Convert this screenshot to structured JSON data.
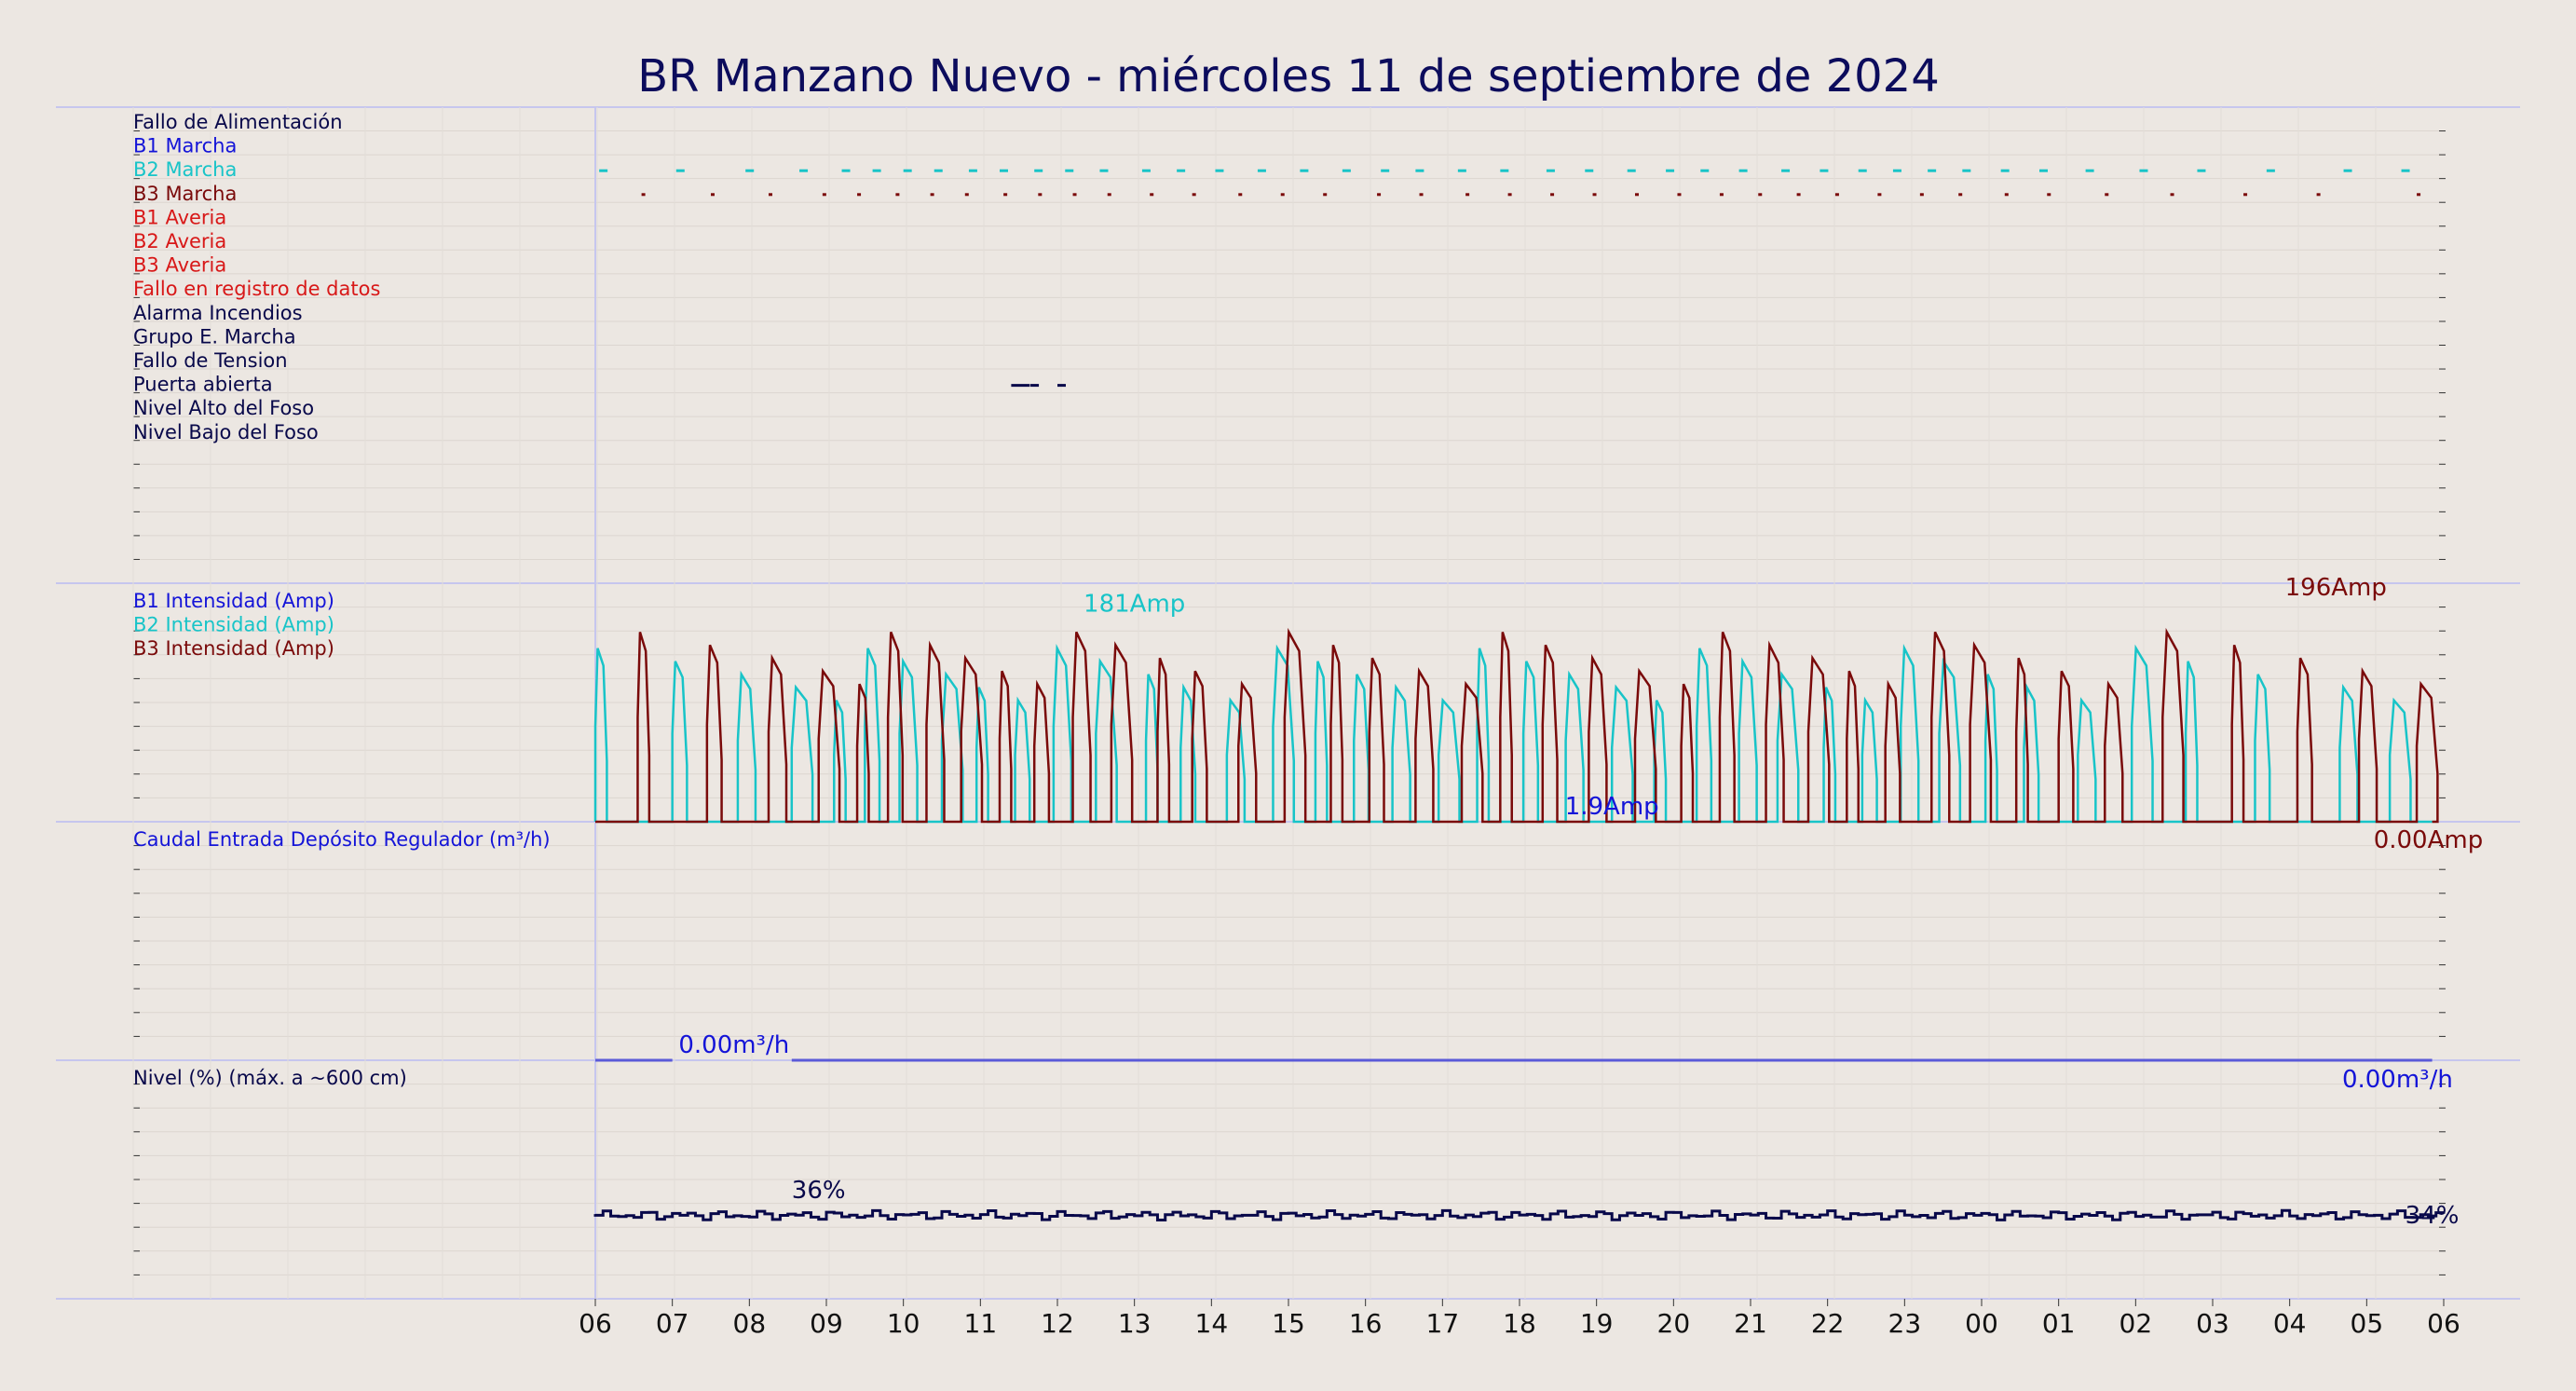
{
  "title": "BR Manzano Nuevo   -   miércoles 11 de septiembre de 2024",
  "colors": {
    "background": "#ece7e2",
    "title": "#0c0c5c",
    "navy": "#08084a",
    "blue": "#1414d8",
    "cyan": "#18c4c8",
    "maroon": "#7a0a0a",
    "red": "#d81818",
    "flow_line": "#5a5ad8",
    "separator": "#c6c6ee"
  },
  "x_ticks": [
    "06",
    "07",
    "08",
    "09",
    "10",
    "11",
    "12",
    "13",
    "14",
    "15",
    "16",
    "17",
    "18",
    "19",
    "20",
    "21",
    "22",
    "23",
    "00",
    "01",
    "02",
    "03",
    "04",
    "05",
    "06"
  ],
  "chart_data": [
    {
      "type": "line",
      "panel": "estados",
      "series": [
        {
          "name": "Fallo de Alimentación",
          "color": "#08084a",
          "on_at_hour": []
        },
        {
          "name": "B1 Marcha",
          "color": "#1414d8",
          "on_at_hour": []
        },
        {
          "name": "B2 Marcha",
          "color": "#18c4c8",
          "on_at_hour": [
            0.05,
            1.05,
            1.95,
            2.65,
            3.2,
            3.6,
            4.0,
            4.4,
            4.85,
            5.25,
            5.7,
            6.1,
            6.55,
            7.1,
            7.55,
            8.05,
            8.6,
            9.15,
            9.7,
            10.2,
            10.65,
            11.2,
            11.75,
            12.35,
            12.85,
            13.4,
            13.9,
            14.35,
            14.85,
            15.4,
            15.9,
            16.4,
            16.85,
            17.3,
            17.75,
            18.25,
            18.75,
            19.35,
            20.05,
            20.8,
            21.7,
            22.7,
            23.45
          ]
        },
        {
          "name": "B3 Marcha",
          "color": "#7a0a0a",
          "on_at_hour": [
            0.6,
            1.5,
            2.25,
            2.95,
            3.4,
            3.9,
            4.35,
            4.8,
            5.3,
            5.75,
            6.2,
            6.65,
            7.2,
            7.75,
            8.35,
            8.9,
            9.45,
            10.15,
            10.7,
            11.3,
            11.85,
            12.4,
            12.95,
            13.5,
            14.05,
            14.6,
            15.1,
            15.6,
            16.1,
            16.65,
            17.2,
            17.7,
            18.3,
            18.85,
            19.6,
            20.45,
            21.4,
            22.35,
            23.65
          ]
        },
        {
          "name": "B1 Averia",
          "color": "#d81818",
          "on_at_hour": []
        },
        {
          "name": "B2 Averia",
          "color": "#d81818",
          "on_at_hour": []
        },
        {
          "name": "B3 Averia",
          "color": "#d81818",
          "on_at_hour": []
        },
        {
          "name": "Fallo en registro de datos",
          "color": "#d81818",
          "on_at_hour": []
        },
        {
          "name": "Alarma Incendios",
          "color": "#08084a",
          "on_at_hour": []
        },
        {
          "name": "Grupo E. Marcha",
          "color": "#08084a",
          "on_at_hour": []
        },
        {
          "name": "Fallo de Tension",
          "color": "#08084a",
          "on_at_hour": []
        },
        {
          "name": "Puerta abierta",
          "color": "#08084a",
          "on_at_hour": [
            5.4,
            5.65,
            6.0
          ]
        },
        {
          "name": "Nivel Alto del Foso",
          "color": "#08084a",
          "on_at_hour": []
        },
        {
          "name": "Nivel Bajo del Foso",
          "color": "#08084a",
          "on_at_hour": []
        }
      ]
    },
    {
      "type": "line",
      "panel": "intensidad",
      "ylim": [
        0,
        220
      ],
      "series": [
        {
          "name": "B1 Intensidad (Amp)",
          "color": "#1414d8",
          "level": 0,
          "pulses": []
        },
        {
          "name": "B2 Intensidad (Amp)",
          "color": "#18c4c8",
          "level": 160,
          "pulses": [
            0.0,
            1.0,
            1.85,
            2.55,
            3.1,
            3.5,
            3.95,
            4.5,
            4.95,
            5.45,
            5.95,
            6.5,
            7.15,
            7.6,
            8.2,
            8.8,
            9.35,
            9.85,
            10.35,
            10.95,
            11.45,
            12.05,
            12.6,
            13.2,
            13.75,
            14.3,
            14.85,
            15.35,
            15.95,
            16.45,
            16.95,
            17.45,
            18.05,
            18.55,
            19.25,
            19.95,
            20.65,
            21.55,
            22.65,
            23.3
          ]
        },
        {
          "name": "B3 Intensidad (Amp)",
          "color": "#7a0a0a",
          "level": 175,
          "pulses": [
            0.55,
            1.45,
            2.25,
            2.9,
            3.4,
            3.8,
            4.3,
            4.75,
            5.25,
            5.7,
            6.2,
            6.7,
            7.3,
            7.75,
            8.35,
            8.95,
            9.55,
            10.05,
            10.65,
            11.25,
            11.75,
            12.3,
            12.9,
            13.5,
            14.1,
            14.6,
            15.2,
            15.75,
            16.25,
            16.75,
            17.35,
            17.85,
            18.45,
            19.0,
            19.6,
            20.35,
            21.25,
            22.1,
            22.9,
            23.65
          ]
        }
      ],
      "annotations": [
        {
          "text": "181Amp",
          "color": "#18c4c8",
          "x_hour": 7.0,
          "value": 181
        },
        {
          "text": "196Amp",
          "color": "#7a0a0a",
          "x_hour": 22.6,
          "value": 196
        },
        {
          "text": "1.9Amp",
          "color": "#1414d8",
          "x_hour": 13.2,
          "value": 1.9
        },
        {
          "text": "0.00Amp",
          "color": "#7a0a0a",
          "x_hour": 23.8,
          "value": 0
        }
      ]
    },
    {
      "type": "line",
      "panel": "caudal",
      "series": [
        {
          "name": "Caudal Entrada Depósito Regulador (m³/h)",
          "color": "#1414d8",
          "segments": [
            [
              0.0,
              1.0,
              0
            ],
            [
              2.55,
              23.85,
              0
            ]
          ]
        }
      ],
      "annotations": [
        {
          "text": "0.00m³/h",
          "color": "#1414d8",
          "x_hour": 1.8,
          "value": 0
        },
        {
          "text": "0.00m³/h",
          "color": "#1414d8",
          "x_hour": 23.4,
          "value": 0
        }
      ]
    },
    {
      "type": "line",
      "panel": "nivel",
      "ylim": [
        0,
        100
      ],
      "series": [
        {
          "name": "Nivel (%) (máx. a ~600 cm)",
          "color": "#08084a",
          "range": [
            33,
            37
          ]
        }
      ],
      "annotations": [
        {
          "text": "36%",
          "color": "#08084a",
          "x_hour": 2.55,
          "value": 36
        },
        {
          "text": "34%",
          "color": "#08084a",
          "x_hour": 23.5,
          "value": 34
        }
      ]
    }
  ]
}
